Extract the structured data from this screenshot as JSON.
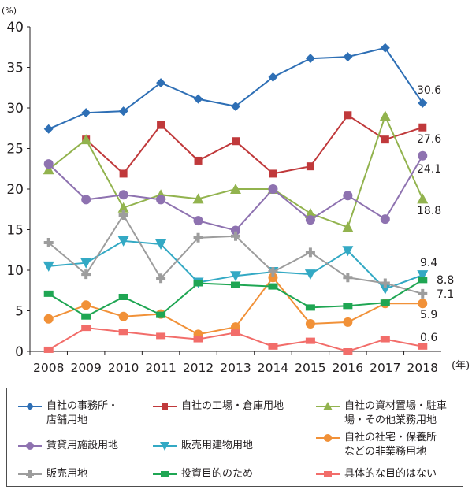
{
  "chart_data": {
    "type": "line",
    "y_unit": "(%)",
    "x_unit": "(年)",
    "ylim": [
      0,
      40
    ],
    "yticks": [
      0,
      5,
      10,
      15,
      20,
      25,
      30,
      35,
      40
    ],
    "x": [
      "2008",
      "2009",
      "2010",
      "2011",
      "2012",
      "2013",
      "2014",
      "2015",
      "2016",
      "2017",
      "2018"
    ],
    "grid": false,
    "legend_position": "bottom",
    "series": [
      {
        "name": "自社の事務所・\n店舗用地",
        "color": "#2e6fb5",
        "marker": "diamond",
        "values": [
          27.4,
          29.4,
          29.6,
          33.1,
          31.1,
          30.2,
          33.8,
          36.1,
          36.3,
          37.4,
          30.6
        ],
        "end_label": "30.6"
      },
      {
        "name": "自社の工場・倉庫用地",
        "color": "#c0393b",
        "marker": "square",
        "values": [
          null,
          26.1,
          21.9,
          27.9,
          23.5,
          25.9,
          21.9,
          22.8,
          29.1,
          26.1,
          27.6
        ],
        "end_label": "27.6"
      },
      {
        "name": "自社の資材置場・駐車\n場・その他業務用地",
        "color": "#92b34e",
        "marker": "triangle-up",
        "values": [
          22.4,
          26.1,
          17.7,
          19.3,
          18.8,
          20.0,
          20.0,
          17.0,
          15.3,
          29.0,
          18.8
        ],
        "end_label": "18.8"
      },
      {
        "name": "賃貸用施設用地",
        "color": "#8e72b0",
        "marker": "circle",
        "values": [
          23.1,
          18.7,
          19.3,
          18.7,
          16.1,
          14.9,
          20.0,
          16.2,
          19.2,
          16.3,
          24.1
        ],
        "end_label": "24.1"
      },
      {
        "name": "販売用建物用地",
        "color": "#33a9c4",
        "marker": "triangle-down",
        "values": [
          10.5,
          10.9,
          13.6,
          13.2,
          8.5,
          9.3,
          9.8,
          9.5,
          12.4,
          7.7,
          9.4
        ],
        "end_label": "9.4"
      },
      {
        "name": "自社の社宅・保養所\nなどの非業務用地",
        "color": "#f19138",
        "marker": "circle",
        "values": [
          4.0,
          5.7,
          4.3,
          4.6,
          2.1,
          3.0,
          9.1,
          3.4,
          3.6,
          5.9,
          5.9
        ],
        "end_label": "5.9"
      },
      {
        "name": "販売用地",
        "color": "#9d9d9d",
        "marker": "plus",
        "values": [
          13.4,
          9.5,
          16.8,
          9.0,
          14.0,
          14.2,
          9.8,
          12.2,
          9.1,
          8.4,
          7.1
        ],
        "end_label": "7.1"
      },
      {
        "name": "投資目的のため",
        "color": "#1fa653",
        "marker": "bar",
        "values": [
          7.1,
          4.3,
          6.7,
          4.5,
          8.4,
          8.2,
          8.0,
          5.4,
          5.6,
          6.0,
          8.8
        ],
        "end_label": "8.8"
      },
      {
        "name": "具体的な目的はない",
        "color": "#f26d6a",
        "marker": "bar",
        "values": [
          0.2,
          2.9,
          2.4,
          1.9,
          1.5,
          2.3,
          0.6,
          1.3,
          0.0,
          1.5,
          0.6
        ],
        "end_label": "0.6"
      }
    ]
  }
}
